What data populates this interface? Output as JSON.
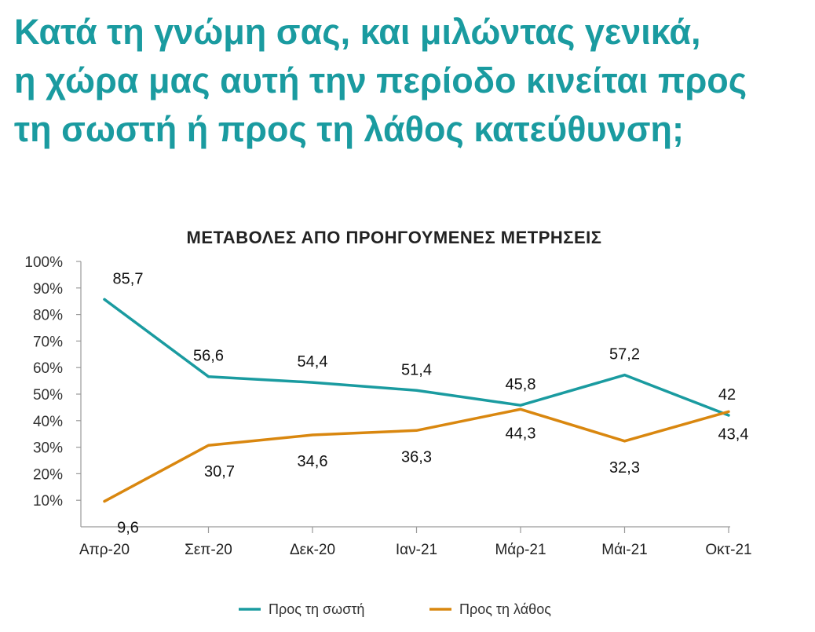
{
  "headline": {
    "line1": "Κατά τη γνώμη σας, και μιλώντας γενικά,",
    "line2": "η χώρα μας αυτή την περίοδο κινείται προς",
    "line3": "τη σωστή ή προς τη λάθος κατεύθυνση;"
  },
  "colors": {
    "headline": "#1a9ba0",
    "right": "#1a9ba0",
    "wrong": "#d9870f"
  },
  "chart_data": {
    "type": "line",
    "title": "ΜΕΤΑΒΟΛΕΣ ΑΠΟ ΠΡΟΗΓΟΥΜΕΝΕΣ ΜΕΤΡΗΣΕΙΣ",
    "categories": [
      "Απρ-20",
      "Σεπ-20",
      "Δεκ-20",
      "Ιαν-21",
      "Μάρ-21",
      "Μάι-21",
      "Οκτ-21"
    ],
    "ylim": [
      0,
      100
    ],
    "yticks": [
      "10%",
      "20%",
      "30%",
      "40%",
      "50%",
      "60%",
      "70%",
      "80%",
      "90%",
      "100%"
    ],
    "grid": false,
    "legend_position": "bottom",
    "series": [
      {
        "name": "Προς τη σωστή",
        "color": "#1a9ba0",
        "values": [
          85.7,
          56.6,
          54.4,
          51.4,
          45.8,
          57.2,
          42
        ],
        "labels": [
          "85,7",
          "56,6",
          "54,4",
          "51,4",
          "45,8",
          "57,2",
          "42"
        ]
      },
      {
        "name": "Προς τη λάθος",
        "color": "#d9870f",
        "values": [
          9.6,
          30.7,
          34.6,
          36.3,
          44.3,
          32.3,
          43.4
        ],
        "labels": [
          "9,6",
          "30,7",
          "34,6",
          "36,3",
          "44,3",
          "32,3",
          "43,4"
        ]
      }
    ]
  }
}
